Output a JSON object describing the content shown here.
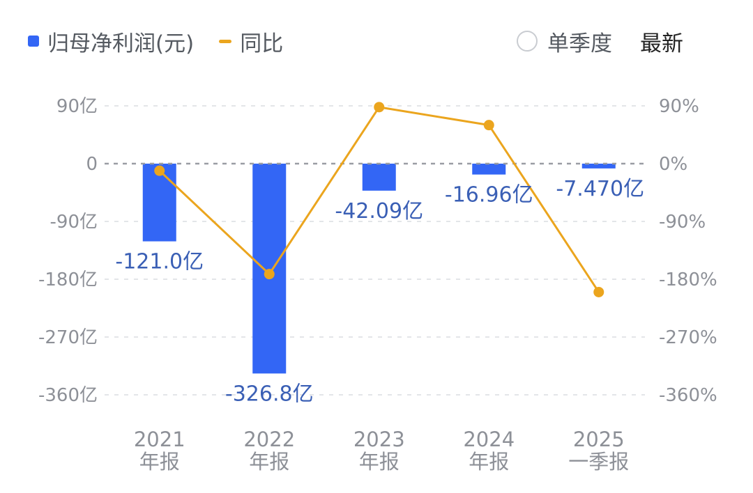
{
  "legend": {
    "bar_label": "归母净利润(元)",
    "line_label": "同比"
  },
  "controls": {
    "single_quarter_label": "单季度",
    "latest_label": "最新"
  },
  "colors": {
    "bar": "#3366f5",
    "line": "#eba51e",
    "grid": "#e3e5e8",
    "zero_line": "#9a9da3"
  },
  "chart_data": {
    "type": "bar",
    "title": "",
    "categories": [
      [
        "2021",
        "年报"
      ],
      [
        "2022",
        "年报"
      ],
      [
        "2023",
        "年报"
      ],
      [
        "2024",
        "年报"
      ],
      [
        "2025",
        "一季报"
      ]
    ],
    "series": [
      {
        "name": "归母净利润(元)",
        "type": "bar",
        "axis": "left",
        "values": [
          -121.0,
          -326.8,
          -42.09,
          -16.96,
          -7.47
        ],
        "labels": [
          "-121.0亿",
          "-326.8亿",
          "-42.09亿",
          "-16.96亿",
          "-7.470亿"
        ]
      },
      {
        "name": "同比",
        "type": "line",
        "axis": "right",
        "values": [
          -11,
          -172,
          88,
          60,
          -200
        ]
      }
    ],
    "left_axis": {
      "ticks": [
        90,
        0,
        -90,
        -180,
        -270,
        -360
      ],
      "tick_labels": [
        "90亿",
        "0",
        "-90亿",
        "-180亿",
        "-270亿",
        "-360亿"
      ],
      "range": [
        -360,
        90
      ],
      "unit": "亿"
    },
    "right_axis": {
      "ticks": [
        90,
        0,
        -90,
        -180,
        -270,
        -360
      ],
      "tick_labels": [
        "90%",
        "0%",
        "-90%",
        "-180%",
        "-270%",
        "-360%"
      ],
      "range": [
        -360,
        90
      ],
      "unit": "%"
    },
    "grid": true,
    "legend_position": "top-left"
  }
}
